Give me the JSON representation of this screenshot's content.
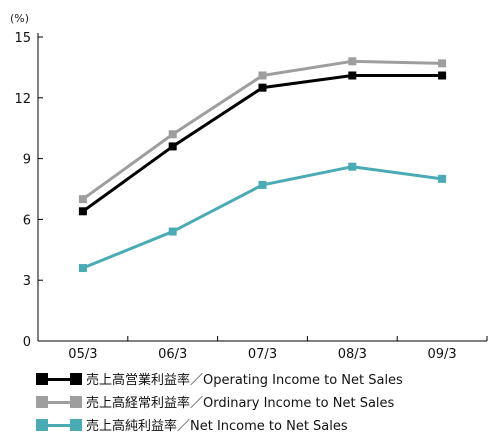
{
  "chart_data": {
    "type": "line",
    "title": "",
    "unit_label": "(%)",
    "xlabel": "",
    "ylabel": "",
    "categories": [
      "05/3",
      "06/3",
      "07/3",
      "08/3",
      "09/3"
    ],
    "y_ticks": [
      "0",
      "3",
      "6",
      "9",
      "12",
      "15"
    ],
    "ylim": [
      0,
      15
    ],
    "grid": false,
    "legend_position": "bottom",
    "series": [
      {
        "name": "売上高営業利益率／Operating Income to Net Sales",
        "color": "#000000",
        "values": [
          6.4,
          9.6,
          12.5,
          13.1,
          13.1
        ]
      },
      {
        "name": "売上高経常利益率／Ordinary Income to Net Sales",
        "color": "#9e9e9e",
        "values": [
          7.0,
          10.2,
          13.1,
          13.8,
          13.7
        ]
      },
      {
        "name": "売上高純利益率／Net Income to Net Sales",
        "color": "#4aabb5",
        "values": [
          3.6,
          5.4,
          7.7,
          8.6,
          8.0
        ]
      }
    ]
  }
}
